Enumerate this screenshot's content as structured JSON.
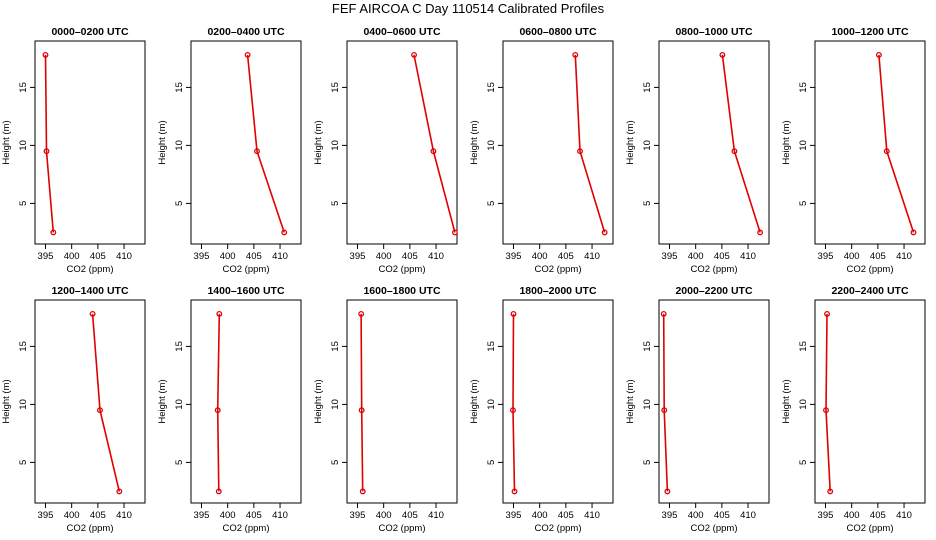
{
  "figure": {
    "title": "FEF AIRCOA C  Day 110514  Calibrated Profiles"
  },
  "chart_data": [
    {
      "type": "line",
      "title": "0000–0200 UTC",
      "xlabel": "CO2 (ppm)",
      "ylabel": "Height (m)",
      "x_ticks": [
        395,
        400,
        405,
        410
      ],
      "y_ticks": [
        5,
        10,
        15
      ],
      "xlim": [
        393,
        414
      ],
      "ylim": [
        1.5,
        19.0
      ],
      "points": [
        {
          "x": 395.0,
          "y": 17.8
        },
        {
          "x": 395.2,
          "y": 9.5
        },
        {
          "x": 396.5,
          "y": 2.5
        }
      ]
    },
    {
      "type": "line",
      "title": "0200–0400 UTC",
      "xlabel": "CO2 (ppm)",
      "ylabel": "Height (m)",
      "x_ticks": [
        395,
        400,
        405,
        410
      ],
      "y_ticks": [
        5,
        10,
        15
      ],
      "xlim": [
        393,
        414
      ],
      "ylim": [
        1.5,
        19.0
      ],
      "points": [
        {
          "x": 403.8,
          "y": 17.8
        },
        {
          "x": 405.6,
          "y": 9.5
        },
        {
          "x": 410.8,
          "y": 2.5
        }
      ]
    },
    {
      "type": "line",
      "title": "0400–0600 UTC",
      "xlabel": "CO2 (ppm)",
      "ylabel": "Height (m)",
      "x_ticks": [
        395,
        400,
        405,
        410
      ],
      "y_ticks": [
        5,
        10,
        15
      ],
      "xlim": [
        393,
        414
      ],
      "ylim": [
        1.5,
        19.0
      ],
      "points": [
        {
          "x": 405.8,
          "y": 17.8
        },
        {
          "x": 409.5,
          "y": 9.5
        },
        {
          "x": 413.6,
          "y": 2.5
        }
      ]
    },
    {
      "type": "line",
      "title": "0600–0800 UTC",
      "xlabel": "CO2 (ppm)",
      "ylabel": "Height (m)",
      "x_ticks": [
        395,
        400,
        405,
        410
      ],
      "y_ticks": [
        5,
        10,
        15
      ],
      "xlim": [
        393,
        414
      ],
      "ylim": [
        1.5,
        19.0
      ],
      "points": [
        {
          "x": 406.8,
          "y": 17.8
        },
        {
          "x": 407.7,
          "y": 9.5
        },
        {
          "x": 412.4,
          "y": 2.5
        }
      ]
    },
    {
      "type": "line",
      "title": "0800–1000 UTC",
      "xlabel": "CO2 (ppm)",
      "ylabel": "Height (m)",
      "x_ticks": [
        395,
        400,
        405,
        410
      ],
      "y_ticks": [
        5,
        10,
        15
      ],
      "xlim": [
        393,
        414
      ],
      "ylim": [
        1.5,
        19.0
      ],
      "points": [
        {
          "x": 405.1,
          "y": 17.8
        },
        {
          "x": 407.4,
          "y": 9.5
        },
        {
          "x": 412.3,
          "y": 2.5
        }
      ]
    },
    {
      "type": "line",
      "title": "1000–1200 UTC",
      "xlabel": "CO2 (ppm)",
      "ylabel": "Height (m)",
      "x_ticks": [
        395,
        400,
        405,
        410
      ],
      "y_ticks": [
        5,
        10,
        15
      ],
      "xlim": [
        393,
        414
      ],
      "ylim": [
        1.5,
        19.0
      ],
      "points": [
        {
          "x": 405.2,
          "y": 17.8
        },
        {
          "x": 406.7,
          "y": 9.5
        },
        {
          "x": 411.8,
          "y": 2.5
        }
      ]
    },
    {
      "type": "line",
      "title": "1200–1400 UTC",
      "xlabel": "CO2 (ppm)",
      "ylabel": "Height (m)",
      "x_ticks": [
        395,
        400,
        405,
        410
      ],
      "y_ticks": [
        5,
        10,
        15
      ],
      "xlim": [
        393,
        414
      ],
      "ylim": [
        1.5,
        19.0
      ],
      "points": [
        {
          "x": 404.0,
          "y": 17.8
        },
        {
          "x": 405.4,
          "y": 9.5
        },
        {
          "x": 409.1,
          "y": 2.5
        }
      ]
    },
    {
      "type": "line",
      "title": "1400–1600 UTC",
      "xlabel": "CO2 (ppm)",
      "ylabel": "Height (m)",
      "x_ticks": [
        395,
        400,
        405,
        410
      ],
      "y_ticks": [
        5,
        10,
        15
      ],
      "xlim": [
        393,
        414
      ],
      "ylim": [
        1.5,
        19.0
      ],
      "points": [
        {
          "x": 398.4,
          "y": 17.8
        },
        {
          "x": 398.1,
          "y": 9.5
        },
        {
          "x": 398.3,
          "y": 2.5
        }
      ]
    },
    {
      "type": "line",
      "title": "1600–1800 UTC",
      "xlabel": "CO2 (ppm)",
      "ylabel": "Height (m)",
      "x_ticks": [
        395,
        400,
        405,
        410
      ],
      "y_ticks": [
        5,
        10,
        15
      ],
      "xlim": [
        393,
        414
      ],
      "ylim": [
        1.5,
        19.0
      ],
      "points": [
        {
          "x": 395.7,
          "y": 17.8
        },
        {
          "x": 395.8,
          "y": 9.5
        },
        {
          "x": 396.0,
          "y": 2.5
        }
      ]
    },
    {
      "type": "line",
      "title": "1800–2000 UTC",
      "xlabel": "CO2 (ppm)",
      "ylabel": "Height (m)",
      "x_ticks": [
        395,
        400,
        405,
        410
      ],
      "y_ticks": [
        5,
        10,
        15
      ],
      "xlim": [
        393,
        414
      ],
      "ylim": [
        1.5,
        19.0
      ],
      "points": [
        {
          "x": 395.0,
          "y": 17.8
        },
        {
          "x": 394.9,
          "y": 9.5
        },
        {
          "x": 395.2,
          "y": 2.5
        }
      ]
    },
    {
      "type": "line",
      "title": "2000–2200 UTC",
      "xlabel": "CO2 (ppm)",
      "ylabel": "Height (m)",
      "x_ticks": [
        395,
        400,
        405,
        410
      ],
      "y_ticks": [
        5,
        10,
        15
      ],
      "xlim": [
        393,
        414
      ],
      "ylim": [
        1.5,
        19.0
      ],
      "points": [
        {
          "x": 393.9,
          "y": 17.8
        },
        {
          "x": 394.0,
          "y": 9.5
        },
        {
          "x": 394.6,
          "y": 2.5
        }
      ]
    },
    {
      "type": "line",
      "title": "2200–2400 UTC",
      "xlabel": "CO2 (ppm)",
      "ylabel": "Height (m)",
      "x_ticks": [
        395,
        400,
        405,
        410
      ],
      "y_ticks": [
        5,
        10,
        15
      ],
      "xlim": [
        393,
        414
      ],
      "ylim": [
        1.5,
        19.0
      ],
      "points": [
        {
          "x": 395.3,
          "y": 17.8
        },
        {
          "x": 395.1,
          "y": 9.5
        },
        {
          "x": 395.9,
          "y": 2.5
        }
      ]
    }
  ]
}
